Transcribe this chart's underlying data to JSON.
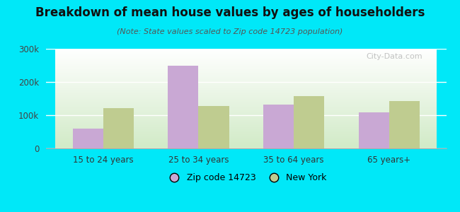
{
  "title": "Breakdown of mean house values by ages of householders",
  "subtitle": "(Note: State values scaled to Zip code 14723 population)",
  "categories": [
    "15 to 24 years",
    "25 to 34 years",
    "35 to 64 years",
    "65 years+"
  ],
  "zip_values": [
    60000,
    250000,
    132000,
    108000
  ],
  "ny_values": [
    122000,
    128000,
    158000,
    143000
  ],
  "zip_color": "#c9a8d4",
  "ny_color": "#bfcc90",
  "background_outer": "#00e8f8",
  "ylim": [
    0,
    300000
  ],
  "yticks": [
    0,
    100000,
    200000,
    300000
  ],
  "ytick_labels": [
    "0",
    "100k",
    "200k",
    "300k"
  ],
  "legend_zip": "Zip code 14723",
  "legend_ny": "New York",
  "bar_width": 0.32,
  "title_fontsize": 12,
  "subtitle_fontsize": 8
}
